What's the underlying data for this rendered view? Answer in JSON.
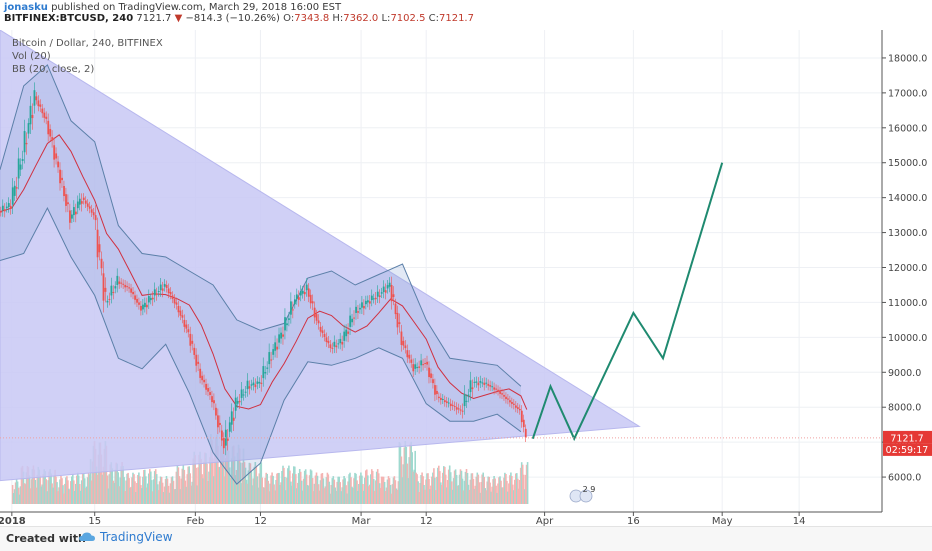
{
  "header": {
    "author": "jonasku",
    "published_text": "published on TradingView.com, March 29, 2018 16:00 EST",
    "symbol": "BITFINEX:BTCUSD, 240",
    "last": "7121.7",
    "change_arrow": "▼",
    "change": "−814.3 (−10.26%)",
    "o_label": "O:",
    "o": "7343.8",
    "h_label": "H:",
    "h": "7362.0",
    "l_label": "L:",
    "l": "7102.5",
    "c_label": "C:",
    "c": "7121.7"
  },
  "legend": {
    "line1": "Bitcoin / Dollar, 240, BITFINEX",
    "line2": "Vol (20)",
    "line3": "BB (20, close, 2)"
  },
  "footer": {
    "created_with": "Created with",
    "brand": "TradingView",
    "brand_icon": "tradingview-cloud-icon"
  },
  "chart_data": {
    "type": "line",
    "symbol": "BITFINEX:BTCUSD",
    "interval": "240",
    "ylim": [
      5000,
      18800
    ],
    "y_ticks": [
      6000,
      7000,
      8000,
      9000,
      10000,
      11000,
      12000,
      13000,
      14000,
      15000,
      16000,
      17000,
      18000
    ],
    "y_tick_labels": [
      "6000.0",
      "7000.0",
      "8000.0",
      "9000.0",
      "10000.0",
      "11000.0",
      "12000.0",
      "13000.0",
      "14000.0",
      "15000.0",
      "16000.0",
      "17000.0",
      "18000.0"
    ],
    "x_tick_labels": [
      "2018",
      "15",
      "Feb",
      "12",
      "Mar",
      "12",
      "Apr",
      "16",
      "May",
      "14"
    ],
    "x_tick_dates": [
      "2018-01-01",
      "2018-01-15",
      "2018-02-01",
      "2018-02-12",
      "2018-03-01",
      "2018-03-12",
      "2018-04-01",
      "2018-04-16",
      "2018-05-01",
      "2018-05-14"
    ],
    "xlim": [
      "2017-12-30",
      "2018-05-28"
    ],
    "last_price": 7121.7,
    "last_price_label": "7121.7",
    "countdown_label": "02:59:17",
    "events_badge": "2 9",
    "price_series": {
      "name": "Bitcoin / Dollar",
      "dates": [
        "2017-12-30",
        "2018-01-01",
        "2018-01-03",
        "2018-01-05",
        "2018-01-07",
        "2018-01-09",
        "2018-01-11",
        "2018-01-13",
        "2018-01-15",
        "2018-01-17",
        "2018-01-19",
        "2018-01-21",
        "2018-01-23",
        "2018-01-25",
        "2018-01-27",
        "2018-01-29",
        "2018-01-31",
        "2018-02-02",
        "2018-02-04",
        "2018-02-06",
        "2018-02-08",
        "2018-02-10",
        "2018-02-12",
        "2018-02-14",
        "2018-02-16",
        "2018-02-18",
        "2018-02-20",
        "2018-02-22",
        "2018-02-24",
        "2018-02-26",
        "2018-02-28",
        "2018-03-02",
        "2018-03-04",
        "2018-03-06",
        "2018-03-08",
        "2018-03-10",
        "2018-03-12",
        "2018-03-14",
        "2018-03-16",
        "2018-03-18",
        "2018-03-20",
        "2018-03-22",
        "2018-03-24",
        "2018-03-26",
        "2018-03-28",
        "2018-03-29"
      ],
      "values": [
        13600,
        13800,
        15300,
        16900,
        16200,
        14800,
        13400,
        14000,
        13500,
        11000,
        11600,
        11400,
        10800,
        11200,
        11500,
        10900,
        10100,
        8900,
        8200,
        6900,
        8100,
        8600,
        8700,
        9500,
        10200,
        11100,
        11400,
        10300,
        9700,
        9900,
        10700,
        11000,
        11200,
        11500,
        9900,
        9100,
        9300,
        8300,
        8100,
        7900,
        8700,
        8700,
        8500,
        8200,
        7900,
        7121.7
      ]
    },
    "bb_upper": {
      "dates": [
        "2017-12-30",
        "2018-01-03",
        "2018-01-07",
        "2018-01-11",
        "2018-01-15",
        "2018-01-19",
        "2018-01-23",
        "2018-01-27",
        "2018-01-31",
        "2018-02-04",
        "2018-02-08",
        "2018-02-12",
        "2018-02-16",
        "2018-02-20",
        "2018-02-24",
        "2018-02-28",
        "2018-03-04",
        "2018-03-08",
        "2018-03-12",
        "2018-03-16",
        "2018-03-20",
        "2018-03-24",
        "2018-03-28"
      ],
      "values": [
        14800,
        17200,
        17800,
        16200,
        15600,
        13200,
        12400,
        12300,
        11900,
        11500,
        10500,
        10200,
        10400,
        11700,
        11900,
        11500,
        11800,
        12100,
        10500,
        9400,
        9300,
        9200,
        8600
      ]
    },
    "bb_lower": {
      "dates": [
        "2017-12-30",
        "2018-01-03",
        "2018-01-07",
        "2018-01-11",
        "2018-01-15",
        "2018-01-19",
        "2018-01-23",
        "2018-01-27",
        "2018-01-31",
        "2018-02-04",
        "2018-02-08",
        "2018-02-12",
        "2018-02-16",
        "2018-02-20",
        "2018-02-24",
        "2018-02-28",
        "2018-03-04",
        "2018-03-08",
        "2018-03-12",
        "2018-03-16",
        "2018-03-20",
        "2018-03-24",
        "2018-03-28"
      ],
      "values": [
        12200,
        12400,
        13700,
        12300,
        11200,
        9400,
        9100,
        9800,
        8400,
        6700,
        5800,
        6400,
        8200,
        9300,
        9200,
        9400,
        9700,
        9400,
        8100,
        7600,
        7600,
        7800,
        7300
      ]
    },
    "projection": {
      "dates": [
        "2018-03-30",
        "2018-04-02",
        "2018-04-06",
        "2018-04-16",
        "2018-04-21",
        "2018-05-01"
      ],
      "values": [
        7100,
        8600,
        7100,
        10700,
        9400,
        15000
      ]
    },
    "triangle": {
      "dates": [
        "2017-12-30",
        "2018-04-17",
        "2017-12-30"
      ],
      "values": [
        18800,
        7450,
        5900
      ]
    },
    "volume": {
      "dates": [
        "2018-01-01",
        "2018-01-04",
        "2018-01-07",
        "2018-01-10",
        "2018-01-13",
        "2018-01-16",
        "2018-01-19",
        "2018-01-22",
        "2018-01-25",
        "2018-01-28",
        "2018-01-31",
        "2018-02-03",
        "2018-02-05",
        "2018-02-07",
        "2018-02-10",
        "2018-02-13",
        "2018-02-16",
        "2018-02-19",
        "2018-02-22",
        "2018-02-25",
        "2018-02-28",
        "2018-03-03",
        "2018-03-06",
        "2018-03-09",
        "2018-03-12",
        "2018-03-15",
        "2018-03-18",
        "2018-03-21",
        "2018-03-24",
        "2018-03-27",
        "2018-03-29"
      ],
      "values": [
        0.35,
        0.55,
        0.5,
        0.4,
        0.45,
        0.9,
        0.6,
        0.45,
        0.5,
        0.4,
        0.55,
        0.75,
        1.0,
        0.85,
        0.6,
        0.45,
        0.55,
        0.5,
        0.45,
        0.4,
        0.45,
        0.5,
        0.4,
        0.9,
        0.45,
        0.55,
        0.5,
        0.45,
        0.4,
        0.45,
        0.6
      ],
      "up": [
        true,
        false,
        true,
        false,
        true,
        false,
        true,
        false,
        true,
        false,
        false,
        false,
        false,
        true,
        true,
        false,
        true,
        true,
        false,
        true,
        true,
        false,
        false,
        true,
        false,
        false,
        true,
        false,
        false,
        false,
        false
      ]
    },
    "colors": {
      "up": "#26a69a",
      "down": "#ef5350",
      "projection": "#1f8a70",
      "triangle_fill": "#c8c8f5",
      "bb_line": "#5b7fa8",
      "basis": "#d03040",
      "last_price_bg": "#e53935"
    }
  }
}
